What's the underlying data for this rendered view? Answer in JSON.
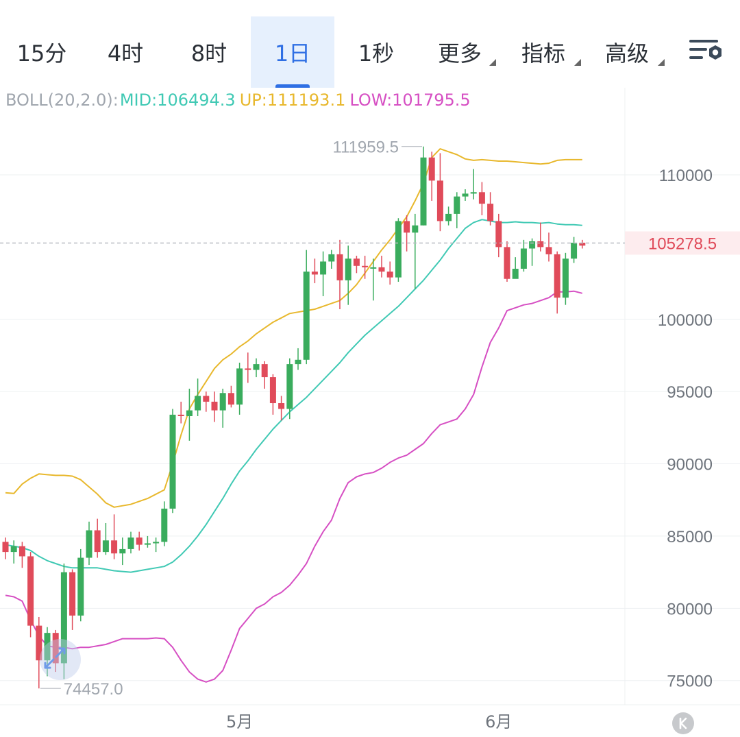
{
  "tabs": [
    {
      "label": "15分",
      "active": false,
      "dropdown": false
    },
    {
      "label": "4时",
      "active": false,
      "dropdown": false
    },
    {
      "label": "8时",
      "active": false,
      "dropdown": false
    },
    {
      "label": "1日",
      "active": true,
      "dropdown": false
    },
    {
      "label": "1秒",
      "active": false,
      "dropdown": false
    },
    {
      "label": "更多",
      "active": false,
      "dropdown": true
    },
    {
      "label": "指标",
      "active": false,
      "dropdown": true
    },
    {
      "label": "高级",
      "active": false,
      "dropdown": true
    }
  ],
  "icons": {
    "settings": "chart-settings-icon",
    "expand": "expand-arrows-icon",
    "back": "k-back-icon"
  },
  "indicator": {
    "name": "BOLL(20,2.0):",
    "mid": "MID:106494.3",
    "up": "UP:111193.1",
    "low": "LOW:101795.5"
  },
  "colors": {
    "up_candle": "#3aac5d",
    "down_candle": "#e04b5a",
    "mid": "#40c9b4",
    "upper": "#e8b82d",
    "lower": "#d64fc3",
    "accent": "#2f6fe4",
    "price_label": "#e04b5a"
  },
  "chart_data": {
    "type": "candlestick",
    "ylim": [
      73800,
      116500
    ],
    "y_ticks": [
      75000,
      80000,
      85000,
      90000,
      95000,
      100000,
      110000
    ],
    "y_tick_labels": [
      "75000",
      "80000",
      "85000",
      "90000",
      "95000",
      "100000",
      "110000"
    ],
    "x_labels": [
      {
        "index": 28,
        "label": "5月"
      },
      {
        "index": 59,
        "label": "6月"
      }
    ],
    "current_price": 105278.5,
    "current_price_label": "105278.5",
    "high_marker": {
      "index": 50,
      "value": 111959.5,
      "label": "111959.5"
    },
    "low_marker": {
      "index": 4,
      "value": 74457.0,
      "label": "74457.0"
    },
    "candles": [
      [
        84600,
        83900,
        84900,
        83400
      ],
      [
        83900,
        84300,
        84700,
        83100
      ],
      [
        84300,
        83600,
        84600,
        82800
      ],
      [
        83600,
        78800,
        83900,
        78000
      ],
      [
        78800,
        76400,
        79400,
        74457
      ],
      [
        76400,
        78300,
        78700,
        75300
      ],
      [
        78300,
        76200,
        78500,
        75600
      ],
      [
        76200,
        82500,
        83100,
        75100
      ],
      [
        82500,
        79500,
        82700,
        78500
      ],
      [
        79500,
        83500,
        84100,
        79100
      ],
      [
        83500,
        85400,
        86000,
        83000
      ],
      [
        85400,
        83900,
        86200,
        83500
      ],
      [
        83900,
        84700,
        85900,
        83700
      ],
      [
        84700,
        83800,
        86500,
        83400
      ],
      [
        83800,
        84100,
        84900,
        83000
      ],
      [
        84100,
        84900,
        85300,
        83800
      ],
      [
        84900,
        84400,
        85300,
        84000
      ],
      [
        84400,
        84500,
        85000,
        84200
      ],
      [
        84500,
        84600,
        84900,
        83900
      ],
      [
        84600,
        86900,
        87400,
        84300
      ],
      [
        86900,
        93400,
        93800,
        86600
      ],
      [
        93400,
        93300,
        94300,
        92800
      ],
      [
        93300,
        93700,
        95200,
        91600
      ],
      [
        93700,
        94700,
        95900,
        93300
      ],
      [
        94700,
        94300,
        95000,
        93600
      ],
      [
        94300,
        93700,
        95000,
        92900
      ],
      [
        93700,
        94900,
        95200,
        92500
      ],
      [
        94900,
        94100,
        95400,
        93900
      ],
      [
        94100,
        96600,
        97000,
        93400
      ],
      [
        96600,
        96500,
        97700,
        95600
      ],
      [
        96500,
        96900,
        97300,
        96000
      ],
      [
        96900,
        96000,
        97100,
        95200
      ],
      [
        96000,
        94200,
        96200,
        93400
      ],
      [
        94200,
        93800,
        94700,
        93000
      ],
      [
        93800,
        96900,
        97300,
        93100
      ],
      [
        96900,
        97200,
        98000,
        96500
      ],
      [
        97200,
        103300,
        104800,
        96900
      ],
      [
        103300,
        103100,
        104200,
        102500
      ],
      [
        103100,
        104000,
        104700,
        101600
      ],
      [
        104000,
        104500,
        104800,
        103500
      ],
      [
        104500,
        102700,
        105500,
        100700
      ],
      [
        102700,
        104200,
        105100,
        101000
      ],
      [
        104200,
        103700,
        104400,
        103200
      ],
      [
        103700,
        103600,
        104400,
        102800
      ],
      [
        103600,
        103600,
        104200,
        101300
      ],
      [
        103600,
        103300,
        104400,
        102900
      ],
      [
        103300,
        102900,
        104000,
        102400
      ],
      [
        102900,
        106800,
        107000,
        102600
      ],
      [
        106800,
        106000,
        107200,
        104700
      ],
      [
        106000,
        106500,
        107300,
        102100
      ],
      [
        106500,
        111200,
        111959,
        106500
      ],
      [
        111200,
        109600,
        111600,
        108200
      ],
      [
        109600,
        106800,
        111500,
        106100
      ],
      [
        106800,
        107300,
        107800,
        106500
      ],
      [
        107300,
        108500,
        108800,
        106300
      ],
      [
        108500,
        108700,
        109000,
        108200
      ],
      [
        108700,
        108800,
        110400,
        108300
      ],
      [
        108800,
        108000,
        109500,
        107200
      ],
      [
        108000,
        106800,
        108800,
        106500
      ],
      [
        106800,
        105000,
        107300,
        104300
      ],
      [
        105000,
        102800,
        105400,
        102600
      ],
      [
        102800,
        103500,
        104300,
        103100
      ],
      [
        103500,
        104900,
        105500,
        103300
      ],
      [
        104900,
        105400,
        105600,
        103700
      ],
      [
        105400,
        105000,
        106700,
        104700
      ],
      [
        105000,
        104500,
        106000,
        104000
      ],
      [
        104500,
        101500,
        104700,
        100400
      ],
      [
        101500,
        104200,
        104600,
        101000
      ],
      [
        104200,
        105300,
        105700,
        103900
      ],
      [
        105300,
        105100,
        105500,
        104900
      ]
    ],
    "series": [
      {
        "name": "UP",
        "values": [
          88000,
          87950,
          88600,
          89000,
          89300,
          89250,
          89200,
          89200,
          89150,
          88900,
          88400,
          87900,
          87300,
          87000,
          87100,
          87200,
          87400,
          87600,
          87900,
          88200,
          90000,
          92000,
          93800,
          94800,
          95700,
          96600,
          97200,
          97600,
          98100,
          98500,
          99000,
          99400,
          99800,
          100100,
          100400,
          100500,
          100600,
          100700,
          100900,
          101100,
          101300,
          101800,
          102400,
          103200,
          104000,
          104800,
          105500,
          106300,
          107100,
          108200,
          109400,
          111200,
          111800,
          111600,
          111400,
          111100,
          111000,
          111050,
          111000,
          110950,
          110950,
          110900,
          110850,
          110800,
          110750,
          110800,
          111000,
          111050,
          111050,
          111050
        ]
      },
      {
        "name": "MID",
        "values": [
          84400,
          84300,
          84200,
          84000,
          83600,
          83300,
          83100,
          82900,
          82800,
          82800,
          82800,
          82800,
          82700,
          82600,
          82550,
          82500,
          82600,
          82700,
          82800,
          82900,
          83200,
          83700,
          84300,
          85000,
          85800,
          86700,
          87600,
          88600,
          89500,
          90200,
          91000,
          91700,
          92400,
          93000,
          93600,
          94100,
          94600,
          95200,
          95800,
          96400,
          97000,
          97700,
          98300,
          98900,
          99400,
          99900,
          100400,
          100900,
          101500,
          102100,
          102700,
          103400,
          104100,
          104900,
          105600,
          106300,
          106700,
          106900,
          106800,
          106700,
          106700,
          106750,
          106700,
          106700,
          106650,
          106700,
          106600,
          106550,
          106550,
          106500
        ]
      },
      {
        "name": "LOW",
        "values": [
          80900,
          80800,
          80500,
          79200,
          78100,
          77400,
          77300,
          77300,
          77200,
          77300,
          77300,
          77400,
          77500,
          77700,
          77900,
          77900,
          77900,
          77900,
          77950,
          77900,
          77300,
          76400,
          75600,
          75100,
          74900,
          75100,
          75700,
          77100,
          78600,
          79300,
          80000,
          80300,
          80800,
          81100,
          81600,
          82300,
          83100,
          84300,
          85300,
          86100,
          87600,
          88700,
          89100,
          89300,
          89400,
          89700,
          90100,
          90400,
          90600,
          91000,
          91400,
          92100,
          92700,
          92900,
          93100,
          93800,
          94800,
          96700,
          98400,
          99400,
          100600,
          100800,
          101000,
          101100,
          101300,
          101500,
          101900,
          101900,
          101950,
          101800
        ]
      }
    ]
  }
}
